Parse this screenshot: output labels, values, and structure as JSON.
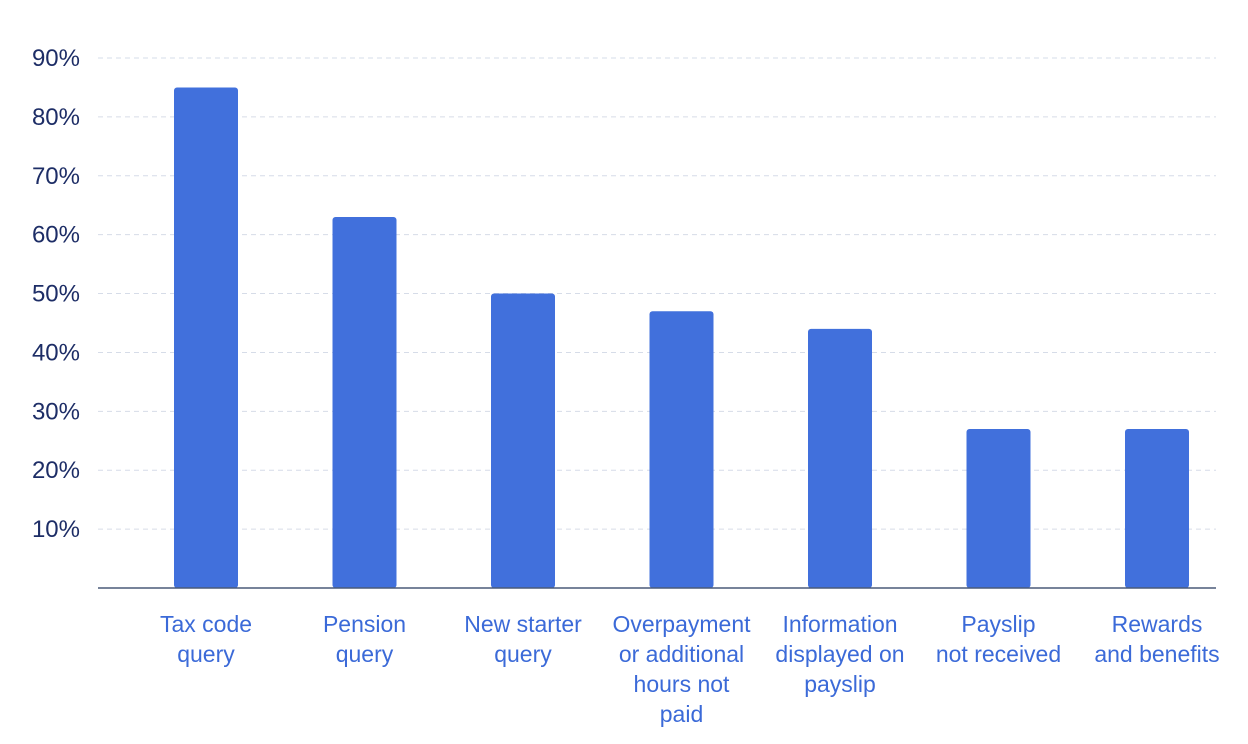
{
  "chart_data": {
    "type": "bar",
    "categories": [
      [
        "Tax code",
        "query"
      ],
      [
        "Pension",
        "query"
      ],
      [
        "New starter",
        "query"
      ],
      [
        "Overpayment",
        "or additional",
        "hours not",
        "paid"
      ],
      [
        "Information",
        "displayed on",
        "payslip"
      ],
      [
        "Payslip",
        "not received"
      ],
      [
        "Rewards",
        "and benefits"
      ]
    ],
    "values": [
      85,
      63,
      50,
      47,
      44,
      27,
      27
    ],
    "ylim": [
      0,
      90
    ],
    "yticks": [
      10,
      20,
      30,
      40,
      50,
      60,
      70,
      80,
      90
    ],
    "ytick_labels": [
      "10%",
      "20%",
      "30%",
      "40%",
      "50%",
      "60%",
      "70%",
      "80%",
      "90%"
    ],
    "grid": true,
    "legend": "none",
    "bar_color": "#4170dc",
    "tick_label_color": "#1d2d66",
    "category_label_color": "#3b6ad8",
    "title": "",
    "xlabel": "",
    "ylabel": ""
  }
}
